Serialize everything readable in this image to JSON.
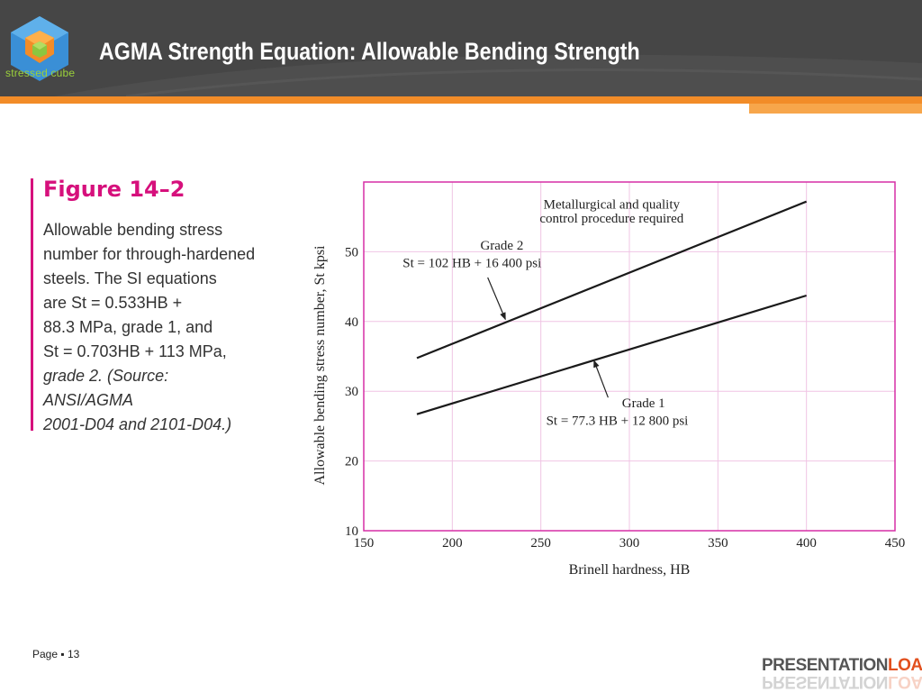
{
  "header": {
    "title": "AGMA Strength Equation: Allowable Bending Strength",
    "logo_text": "stressed cube",
    "logo_icon": "cube-icon"
  },
  "figure": {
    "title": "Figure 14–2",
    "caption_lines": [
      "Allowable bending stress",
      "number for through-hardened",
      "steels. The SI equations",
      "are St = 0.533HB +",
      "88.3 MPa, grade 1, and",
      "St = 0.703HB + 113 MPa,",
      "grade 2. (Source:",
      "ANSI/AGMA",
      "2001-D04 and 2101-D04.)"
    ]
  },
  "chart_data": {
    "type": "line",
    "xlabel": "Brinell hardness, HB",
    "ylabel": "Allowable bending stress number, St kpsi",
    "xlim": [
      150,
      450
    ],
    "ylim": [
      10,
      60
    ],
    "xticks": [
      150,
      200,
      250,
      300,
      350,
      400,
      450
    ],
    "yticks": [
      10,
      20,
      30,
      40,
      50
    ],
    "grid": true,
    "frame_color": "#d62fa5",
    "grid_color": "#f0c4e4",
    "series": [
      {
        "name": "Grade 2",
        "equation": "St = 102 HB + 16 400 psi",
        "x": [
          180,
          400
        ],
        "y": [
          34.76,
          57.2
        ]
      },
      {
        "name": "Grade 1",
        "equation": "St = 77.3 HB + 12 800 psi",
        "x": [
          180,
          400
        ],
        "y": [
          26.71,
          43.72
        ]
      }
    ],
    "annotations": [
      {
        "text_lines": [
          "Metallurgical and quality",
          "control procedure required"
        ]
      },
      {
        "text_lines": [
          "Grade 2",
          "St = 102 HB + 16 400 psi"
        ],
        "arrow_to": [
          230,
          40.3
        ]
      },
      {
        "text_lines": [
          "Grade 1",
          "St = 77.3 HB + 12 800 psi"
        ],
        "arrow_to": [
          280,
          34.4
        ]
      }
    ]
  },
  "footer": {
    "page_label": "Page",
    "page_sep": "▪",
    "page_number": "13",
    "brand_part1": "PRESENTATION",
    "brand_part2": "LOAD",
    "accent_color": "#f28c28"
  }
}
